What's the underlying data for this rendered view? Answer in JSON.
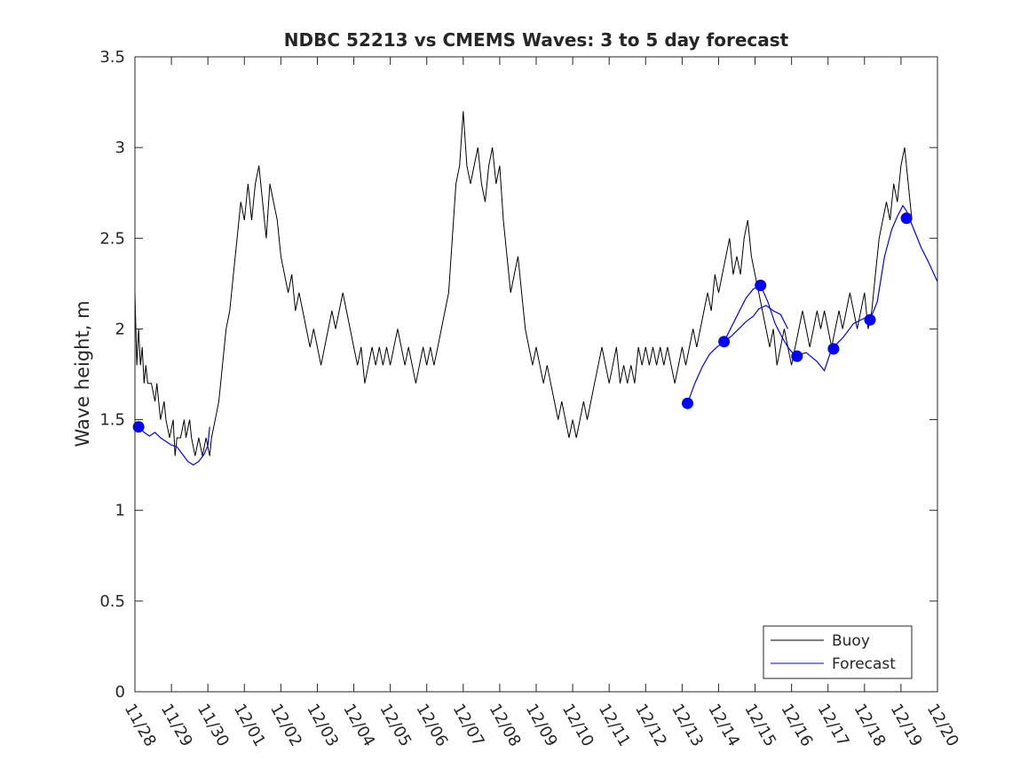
{
  "chart_data": {
    "type": "line",
    "title": "NDBC 52213 vs CMEMS Waves: 3 to 5 day forecast",
    "xlabel": "",
    "ylabel": "Wave height, m",
    "x_ticks": [
      "11/28",
      "11/29",
      "11/30",
      "12/01",
      "12/02",
      "12/03",
      "12/04",
      "12/05",
      "12/06",
      "12/07",
      "12/08",
      "12/09",
      "12/10",
      "12/11",
      "12/12",
      "12/13",
      "12/14",
      "12/15",
      "12/16",
      "12/17",
      "12/18",
      "12/19",
      "12/20"
    ],
    "y_ticks": [
      "0",
      "0.5",
      "1",
      "1.5",
      "2",
      "2.5",
      "3",
      "3.5"
    ],
    "xlim": [
      0,
      22
    ],
    "ylim": [
      0,
      3.5
    ],
    "x_unit": "days from 11/28",
    "legend": {
      "placement": "bottom-right",
      "entries": [
        "Buoy",
        "Forecast"
      ]
    },
    "series": [
      {
        "name": "Buoy",
        "color": "#000000",
        "points": [
          [
            0.0,
            2.2
          ],
          [
            0.05,
            1.8
          ],
          [
            0.1,
            2.0
          ],
          [
            0.15,
            1.8
          ],
          [
            0.2,
            1.9
          ],
          [
            0.25,
            1.7
          ],
          [
            0.3,
            1.8
          ],
          [
            0.35,
            1.7
          ],
          [
            0.45,
            1.7
          ],
          [
            0.55,
            1.6
          ],
          [
            0.6,
            1.7
          ],
          [
            0.7,
            1.5
          ],
          [
            0.8,
            1.6
          ],
          [
            0.85,
            1.5
          ],
          [
            0.95,
            1.4
          ],
          [
            1.05,
            1.5
          ],
          [
            1.1,
            1.3
          ],
          [
            1.15,
            1.4
          ],
          [
            1.25,
            1.4
          ],
          [
            1.35,
            1.5
          ],
          [
            1.4,
            1.4
          ],
          [
            1.5,
            1.5
          ],
          [
            1.55,
            1.4
          ],
          [
            1.65,
            1.3
          ],
          [
            1.75,
            1.4
          ],
          [
            1.85,
            1.3
          ],
          [
            1.95,
            1.4
          ],
          [
            2.05,
            1.3
          ],
          [
            2.1,
            1.4
          ],
          [
            2.2,
            1.5
          ],
          [
            2.3,
            1.6
          ],
          [
            2.4,
            1.8
          ],
          [
            2.5,
            2.0
          ],
          [
            2.6,
            2.1
          ],
          [
            2.7,
            2.3
          ],
          [
            2.8,
            2.5
          ],
          [
            2.9,
            2.7
          ],
          [
            3.0,
            2.6
          ],
          [
            3.1,
            2.8
          ],
          [
            3.2,
            2.6
          ],
          [
            3.3,
            2.8
          ],
          [
            3.4,
            2.9
          ],
          [
            3.5,
            2.7
          ],
          [
            3.6,
            2.5
          ],
          [
            3.7,
            2.8
          ],
          [
            3.8,
            2.7
          ],
          [
            3.9,
            2.6
          ],
          [
            4.0,
            2.4
          ],
          [
            4.1,
            2.3
          ],
          [
            4.2,
            2.2
          ],
          [
            4.3,
            2.3
          ],
          [
            4.4,
            2.1
          ],
          [
            4.5,
            2.2
          ],
          [
            4.6,
            2.1
          ],
          [
            4.7,
            2.0
          ],
          [
            4.8,
            1.9
          ],
          [
            4.9,
            2.0
          ],
          [
            5.0,
            1.9
          ],
          [
            5.1,
            1.8
          ],
          [
            5.2,
            1.9
          ],
          [
            5.3,
            2.0
          ],
          [
            5.4,
            2.1
          ],
          [
            5.5,
            2.0
          ],
          [
            5.6,
            2.1
          ],
          [
            5.7,
            2.2
          ],
          [
            5.8,
            2.1
          ],
          [
            5.9,
            2.0
          ],
          [
            6.0,
            1.9
          ],
          [
            6.1,
            1.8
          ],
          [
            6.2,
            1.9
          ],
          [
            6.3,
            1.7
          ],
          [
            6.4,
            1.8
          ],
          [
            6.5,
            1.9
          ],
          [
            6.6,
            1.8
          ],
          [
            6.7,
            1.9
          ],
          [
            6.8,
            1.8
          ],
          [
            6.9,
            1.9
          ],
          [
            7.0,
            1.8
          ],
          [
            7.1,
            1.9
          ],
          [
            7.2,
            2.0
          ],
          [
            7.3,
            1.9
          ],
          [
            7.4,
            1.8
          ],
          [
            7.5,
            1.9
          ],
          [
            7.6,
            1.8
          ],
          [
            7.7,
            1.7
          ],
          [
            7.8,
            1.8
          ],
          [
            7.9,
            1.9
          ],
          [
            8.0,
            1.8
          ],
          [
            8.1,
            1.9
          ],
          [
            8.2,
            1.8
          ],
          [
            8.3,
            1.9
          ],
          [
            8.4,
            2.0
          ],
          [
            8.5,
            2.1
          ],
          [
            8.6,
            2.2
          ],
          [
            8.7,
            2.5
          ],
          [
            8.8,
            2.8
          ],
          [
            8.9,
            2.9
          ],
          [
            9.0,
            3.2
          ],
          [
            9.1,
            2.9
          ],
          [
            9.2,
            2.8
          ],
          [
            9.3,
            2.9
          ],
          [
            9.4,
            3.0
          ],
          [
            9.5,
            2.8
          ],
          [
            9.6,
            2.7
          ],
          [
            9.7,
            2.9
          ],
          [
            9.8,
            3.0
          ],
          [
            9.9,
            2.8
          ],
          [
            10.0,
            2.9
          ],
          [
            10.1,
            2.6
          ],
          [
            10.2,
            2.4
          ],
          [
            10.3,
            2.2
          ],
          [
            10.4,
            2.3
          ],
          [
            10.5,
            2.4
          ],
          [
            10.6,
            2.2
          ],
          [
            10.7,
            2.0
          ],
          [
            10.8,
            1.9
          ],
          [
            10.9,
            1.8
          ],
          [
            11.0,
            1.9
          ],
          [
            11.1,
            1.8
          ],
          [
            11.2,
            1.7
          ],
          [
            11.3,
            1.8
          ],
          [
            11.4,
            1.7
          ],
          [
            11.5,
            1.6
          ],
          [
            11.6,
            1.5
          ],
          [
            11.7,
            1.6
          ],
          [
            11.8,
            1.5
          ],
          [
            11.9,
            1.4
          ],
          [
            12.0,
            1.5
          ],
          [
            12.1,
            1.4
          ],
          [
            12.2,
            1.5
          ],
          [
            12.3,
            1.6
          ],
          [
            12.4,
            1.5
          ],
          [
            12.5,
            1.6
          ],
          [
            12.6,
            1.7
          ],
          [
            12.7,
            1.8
          ],
          [
            12.8,
            1.9
          ],
          [
            12.9,
            1.8
          ],
          [
            13.0,
            1.7
          ],
          [
            13.1,
            1.8
          ],
          [
            13.2,
            1.9
          ],
          [
            13.3,
            1.7
          ],
          [
            13.4,
            1.8
          ],
          [
            13.5,
            1.7
          ],
          [
            13.6,
            1.8
          ],
          [
            13.7,
            1.7
          ],
          [
            13.8,
            1.9
          ],
          [
            13.9,
            1.8
          ],
          [
            14.0,
            1.9
          ],
          [
            14.1,
            1.8
          ],
          [
            14.2,
            1.9
          ],
          [
            14.3,
            1.8
          ],
          [
            14.4,
            1.9
          ],
          [
            14.5,
            1.8
          ],
          [
            14.6,
            1.9
          ],
          [
            14.7,
            1.8
          ],
          [
            14.8,
            1.7
          ],
          [
            14.9,
            1.8
          ],
          [
            15.0,
            1.9
          ],
          [
            15.1,
            1.8
          ],
          [
            15.2,
            1.9
          ],
          [
            15.3,
            2.0
          ],
          [
            15.4,
            1.9
          ],
          [
            15.5,
            2.0
          ],
          [
            15.6,
            2.1
          ],
          [
            15.7,
            2.2
          ],
          [
            15.8,
            2.1
          ],
          [
            15.9,
            2.3
          ],
          [
            16.0,
            2.2
          ],
          [
            16.1,
            2.3
          ],
          [
            16.2,
            2.4
          ],
          [
            16.3,
            2.5
          ],
          [
            16.4,
            2.3
          ],
          [
            16.5,
            2.4
          ],
          [
            16.6,
            2.3
          ],
          [
            16.7,
            2.5
          ],
          [
            16.8,
            2.6
          ],
          [
            16.9,
            2.4
          ],
          [
            17.0,
            2.3
          ],
          [
            17.1,
            2.2
          ],
          [
            17.2,
            2.1
          ],
          [
            17.3,
            2.0
          ],
          [
            17.4,
            1.9
          ],
          [
            17.5,
            2.0
          ],
          [
            17.6,
            1.8
          ],
          [
            17.7,
            1.9
          ],
          [
            17.8,
            2.0
          ],
          [
            17.9,
            1.9
          ],
          [
            18.0,
            1.8
          ],
          [
            18.1,
            1.9
          ],
          [
            18.2,
            2.0
          ],
          [
            18.3,
            2.1
          ],
          [
            18.4,
            2.0
          ],
          [
            18.5,
            1.9
          ],
          [
            18.6,
            2.0
          ],
          [
            18.7,
            2.1
          ],
          [
            18.8,
            2.0
          ],
          [
            18.9,
            2.1
          ],
          [
            19.0,
            2.0
          ],
          [
            19.1,
            1.9
          ],
          [
            19.2,
            2.0
          ],
          [
            19.3,
            2.1
          ],
          [
            19.4,
            2.0
          ],
          [
            19.5,
            2.1
          ],
          [
            19.6,
            2.2
          ],
          [
            19.7,
            2.1
          ],
          [
            19.8,
            2.0
          ],
          [
            19.9,
            2.1
          ],
          [
            20.0,
            2.2
          ],
          [
            20.1,
            2.0
          ],
          [
            20.2,
            2.1
          ],
          [
            20.3,
            2.3
          ],
          [
            20.4,
            2.5
          ],
          [
            20.5,
            2.6
          ],
          [
            20.6,
            2.7
          ],
          [
            20.7,
            2.6
          ],
          [
            20.8,
            2.8
          ],
          [
            20.9,
            2.7
          ],
          [
            21.0,
            2.9
          ],
          [
            21.1,
            3.0
          ],
          [
            21.2,
            2.8
          ],
          [
            21.3,
            2.6
          ]
        ]
      },
      {
        "name": "Forecast",
        "color": "#0000ff",
        "segments": [
          [
            [
              0.1,
              1.46
            ],
            [
              0.25,
              1.43
            ],
            [
              0.4,
              1.41
            ],
            [
              0.55,
              1.43
            ],
            [
              0.7,
              1.4
            ],
            [
              0.85,
              1.38
            ],
            [
              1.0,
              1.36
            ],
            [
              1.15,
              1.35
            ],
            [
              1.3,
              1.31
            ],
            [
              1.45,
              1.27
            ],
            [
              1.6,
              1.25
            ],
            [
              1.75,
              1.27
            ],
            [
              1.9,
              1.31
            ],
            [
              2.0,
              1.36
            ],
            [
              2.05,
              1.46
            ]
          ],
          [
            [
              15.15,
              1.59
            ],
            [
              15.35,
              1.7
            ],
            [
              15.55,
              1.79
            ],
            [
              15.75,
              1.86
            ],
            [
              15.95,
              1.9
            ],
            [
              16.15,
              1.93
            ],
            [
              16.35,
              1.96
            ],
            [
              16.55,
              2.0
            ],
            [
              16.75,
              2.04
            ],
            [
              16.95,
              2.07
            ],
            [
              17.1,
              2.11
            ],
            [
              17.3,
              2.13
            ],
            [
              17.5,
              2.1
            ],
            [
              17.7,
              2.08
            ],
            [
              17.9,
              2.0
            ]
          ],
          [
            [
              16.15,
              1.93
            ],
            [
              16.45,
              2.05
            ],
            [
              16.75,
              2.17
            ],
            [
              16.95,
              2.22
            ],
            [
              17.15,
              2.24
            ],
            [
              17.35,
              2.15
            ],
            [
              17.55,
              2.03
            ],
            [
              17.75,
              1.95
            ],
            [
              17.9,
              1.9
            ],
            [
              18.1,
              1.85
            ]
          ],
          [
            [
              18.1,
              1.85
            ],
            [
              18.4,
              1.87
            ],
            [
              18.7,
              1.82
            ],
            [
              18.9,
              1.77
            ],
            [
              19.1,
              1.89
            ],
            [
              19.4,
              1.95
            ],
            [
              19.7,
              2.03
            ],
            [
              20.0,
              2.06
            ],
            [
              20.2,
              2.05
            ]
          ],
          [
            [
              20.15,
              2.05
            ],
            [
              20.35,
              2.15
            ],
            [
              20.55,
              2.4
            ],
            [
              20.75,
              2.55
            ],
            [
              20.9,
              2.62
            ],
            [
              21.05,
              2.68
            ],
            [
              21.15,
              2.65
            ],
            [
              21.35,
              2.55
            ],
            [
              21.55,
              2.45
            ],
            [
              21.75,
              2.37
            ],
            [
              22.0,
              2.26
            ]
          ]
        ],
        "markers": [
          [
            0.1,
            1.46
          ],
          [
            15.15,
            1.59
          ],
          [
            16.15,
            1.93
          ],
          [
            17.15,
            2.24
          ],
          [
            18.15,
            1.85
          ],
          [
            19.15,
            1.89
          ],
          [
            20.15,
            2.05
          ],
          [
            21.15,
            2.61
          ]
        ]
      }
    ]
  }
}
